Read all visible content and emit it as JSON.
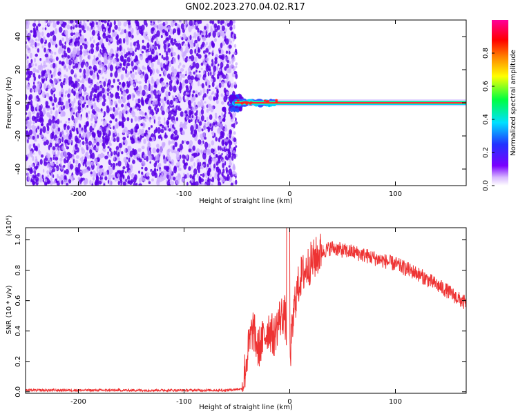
{
  "title": "GN02.2023.270.04.02.R17",
  "colors": {
    "signal": "#ee3333",
    "noise_dark": "#5a00e6",
    "noise_light": "#c9a6ff"
  },
  "chart_data": [
    {
      "type": "heatmap",
      "xlabel": "Height of straight line (km)",
      "ylabel": "Frequency (Hz)",
      "xlim": [
        -250,
        167
      ],
      "ylim": [
        -50,
        50
      ],
      "xticks": [
        -200,
        -100,
        0,
        100
      ],
      "xtick_labels": [
        "-200",
        "-100",
        "0",
        "100"
      ],
      "yticks": [
        -40,
        -20,
        0,
        20,
        40
      ],
      "ytick_labels": [
        "-40",
        "-20",
        "0",
        "20",
        "40"
      ],
      "noise_region_x": [
        -250,
        -53
      ],
      "signal_line_y": 0,
      "signal_start_x": -52,
      "colorbar": {
        "label": "Normalized spectral amplitude",
        "range": [
          0,
          1
        ],
        "ticks": [
          0.0,
          0.2,
          0.4,
          0.6,
          0.8
        ],
        "tick_labels": [
          "0.0",
          "0.2",
          "0.4",
          "0.6",
          "0.8"
        ],
        "colormap": "rainbow (white-violet-blue-cyan-green-yellow-red-magenta)"
      }
    },
    {
      "type": "line",
      "xlabel": "Height of straight line (km)",
      "ylabel": "SNR (10 * v/v)",
      "scale_label": "(x10⁴)",
      "xlim": [
        -250,
        167
      ],
      "ylim": [
        -0.01,
        1.08
      ],
      "xticks": [
        -200,
        -100,
        0,
        100
      ],
      "xtick_labels": [
        "-200",
        "-100",
        "0",
        "100"
      ],
      "yticks": [
        0.0,
        0.2,
        0.4,
        0.6,
        0.8,
        1.0
      ],
      "ytick_labels": [
        "0.0",
        "0.2",
        "0.4",
        "0.6",
        "0.8",
        "1.0"
      ],
      "series": [
        {
          "x": [
            -250,
            -150,
            -60,
            -45,
            -40,
            -35,
            -30,
            -25,
            -20,
            -15,
            -10,
            -5,
            0,
            5,
            10,
            20,
            30,
            40,
            50,
            60,
            70,
            80,
            90,
            100,
            110,
            120,
            130,
            140,
            150,
            160,
            167
          ],
          "y": [
            0.01,
            0.01,
            0.01,
            0.02,
            0.25,
            0.42,
            0.28,
            0.35,
            0.42,
            0.36,
            0.48,
            0.52,
            0.22,
            0.6,
            0.75,
            0.85,
            0.92,
            0.95,
            0.93,
            0.92,
            0.9,
            0.88,
            0.86,
            0.84,
            0.81,
            0.78,
            0.74,
            0.7,
            0.66,
            0.61,
            0.58
          ]
        }
      ]
    }
  ]
}
